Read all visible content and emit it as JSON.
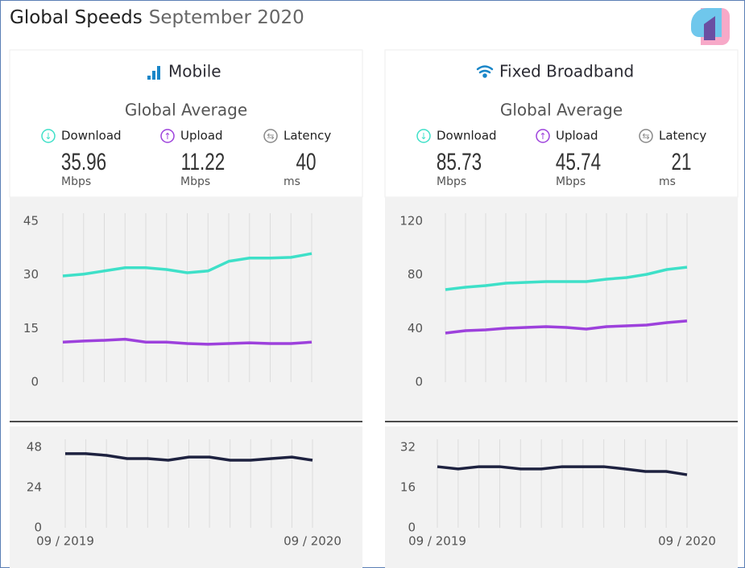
{
  "header": {
    "title": "Global Speeds",
    "subtitle": "September 2020"
  },
  "panels": [
    {
      "title": "Mobile",
      "average_label": "Global Average",
      "metrics": [
        {
          "value": 35.96,
          "unit": "Mbps"
        },
        {
          "value": 11.22,
          "unit": "Mbps"
        },
        {
          "value": 40,
          "unit": "ms"
        }
      ]
    },
    {
      "title": "Fixed Broadband",
      "average_label": "Global Average",
      "metrics": [
        {
          "value": 85.73,
          "unit": "Mbps"
        },
        {
          "value": 45.74,
          "unit": "Mbps"
        },
        {
          "value": 21,
          "unit": "ms"
        }
      ]
    }
  ],
  "chart_data": [
    {
      "type": "line",
      "categories": [
        "09 / 2019",
        null,
        null,
        null,
        null,
        null,
        null,
        null,
        null,
        null,
        null,
        null,
        "09 / 2020"
      ],
      "ylim": [
        0,
        45
      ],
      "yticks": [
        0,
        15,
        30,
        45
      ],
      "grid": true,
      "series": [
        {
          "name": "Download",
          "color": "#3ee0c8",
          "values": [
            29.7,
            30.2,
            31.1,
            32.0,
            32.0,
            31.5,
            30.6,
            31.1,
            33.8,
            34.7,
            34.7,
            34.9,
            35.96
          ]
        },
        {
          "name": "Upload",
          "color": "#9d41dc",
          "values": [
            11.2,
            11.5,
            11.7,
            12.0,
            11.2,
            11.2,
            10.8,
            10.6,
            10.8,
            11.0,
            10.8,
            10.8,
            11.2
          ]
        }
      ]
    },
    {
      "type": "line",
      "categories": [
        "09 / 2019",
        null,
        null,
        null,
        null,
        null,
        null,
        null,
        null,
        null,
        null,
        null,
        "09 / 2020"
      ],
      "ylim": [
        0,
        48
      ],
      "yticks": [
        0,
        24,
        48
      ],
      "grid": true,
      "series": [
        {
          "name": "Latency",
          "color": "#1e2240",
          "values": [
            44.2,
            44.2,
            43.2,
            41.3,
            41.3,
            40.3,
            42.2,
            42.2,
            40.3,
            40.3,
            41.3,
            42.2,
            40.3
          ]
        }
      ]
    },
    {
      "type": "line",
      "categories": [
        "09 / 2019",
        null,
        null,
        null,
        null,
        null,
        null,
        null,
        null,
        null,
        null,
        null,
        "09 / 2020"
      ],
      "ylim": [
        0,
        120
      ],
      "yticks": [
        0,
        40,
        80,
        120
      ],
      "grid": true,
      "series": [
        {
          "name": "Download",
          "color": "#3ee0c8",
          "values": [
            69,
            70.8,
            72,
            73.8,
            74.4,
            75,
            75,
            75,
            76.8,
            78,
            80.4,
            84,
            85.7
          ]
        },
        {
          "name": "Upload",
          "color": "#9d41dc",
          "values": [
            36.6,
            38.4,
            39,
            40.2,
            40.8,
            41.4,
            40.8,
            39.6,
            41.4,
            42,
            42.6,
            44.4,
            45.7
          ]
        }
      ]
    },
    {
      "type": "line",
      "categories": [
        "09 / 2019",
        null,
        null,
        null,
        null,
        null,
        null,
        null,
        null,
        null,
        null,
        null,
        "09 / 2020"
      ],
      "ylim": [
        0,
        32
      ],
      "yticks": [
        0,
        16,
        32
      ],
      "grid": true,
      "series": [
        {
          "name": "Latency",
          "color": "#1e2240",
          "values": [
            24.3,
            23.4,
            24.3,
            24.3,
            23.4,
            23.4,
            24.3,
            24.3,
            24.3,
            23.4,
            22.4,
            22.4,
            21.1
          ]
        }
      ]
    }
  ]
}
